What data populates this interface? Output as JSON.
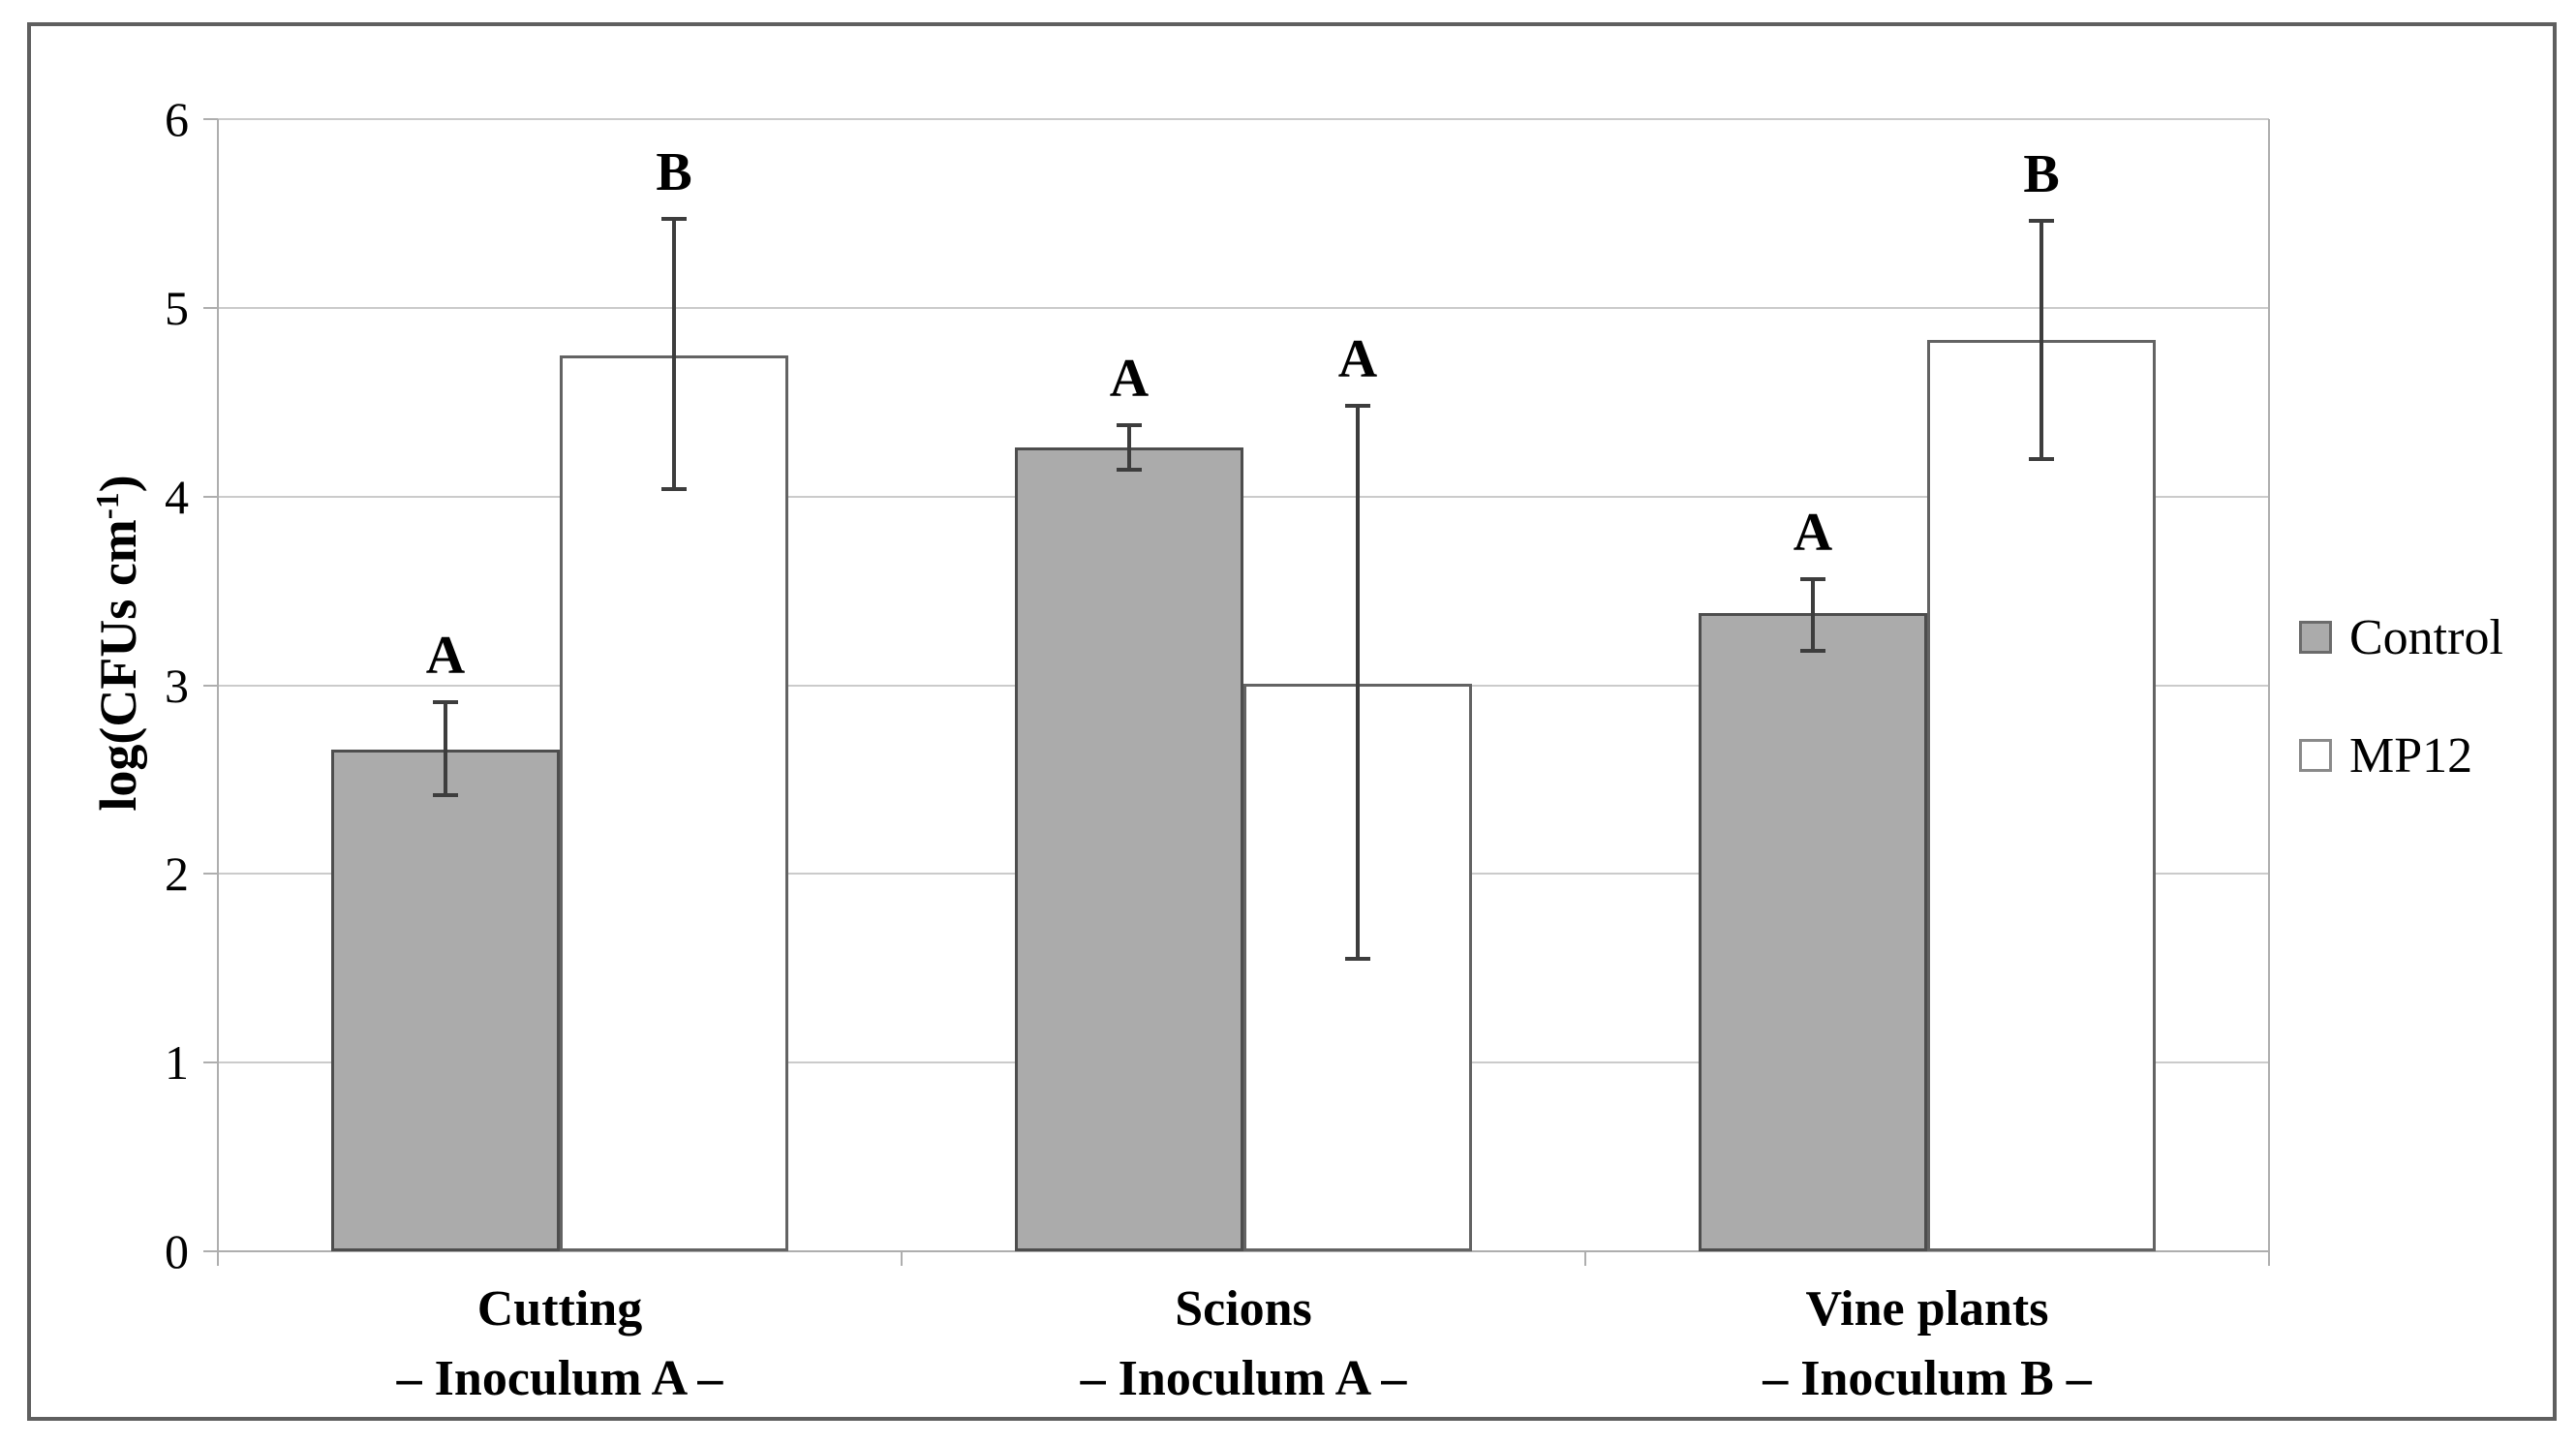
{
  "figure": {
    "background": "#ffffff",
    "frame_color": "#5f5f5f",
    "gridline_color": "#cbcbcb",
    "axis_color": "#aeaeae",
    "error_bar_color": "#3d3d3d",
    "text_color": "#000000"
  },
  "y_axis": {
    "title_main": "log(CFUs cm",
    "title_sup": "-1",
    "title_close": ")",
    "tick_labels": [
      "0",
      "1",
      "2",
      "3",
      "4",
      "5",
      "6"
    ]
  },
  "chart_data": {
    "type": "bar",
    "title": "",
    "xlabel": "",
    "ylabel": "log(CFUs cm-1)",
    "ylim": [
      0,
      6
    ],
    "ytick_step": 1,
    "grid": true,
    "legend_position": "right-outside",
    "categories": [
      {
        "line1": "Cutting",
        "line2": "– Inoculum A –"
      },
      {
        "line1": "Scions",
        "line2": "– Inoculum A –"
      },
      {
        "line1": "Vine plants",
        "line2": "– Inoculum B –"
      }
    ],
    "series": [
      {
        "name": "Control",
        "fill": "#ababab",
        "border": "#4d4d4d",
        "values": [
          2.66,
          4.26,
          3.38
        ],
        "error_low": [
          2.42,
          4.14,
          3.18
        ],
        "error_high": [
          2.91,
          4.38,
          3.56
        ],
        "sig_letters": [
          "A",
          "A",
          "A"
        ]
      },
      {
        "name": "MP12",
        "fill": "#ffffff",
        "border": "#636363",
        "values": [
          4.75,
          3.01,
          4.83
        ],
        "error_low": [
          4.04,
          1.55,
          4.2
        ],
        "error_high": [
          5.47,
          4.48,
          5.46
        ],
        "sig_letters": [
          "B",
          "A",
          "B"
        ]
      }
    ]
  }
}
